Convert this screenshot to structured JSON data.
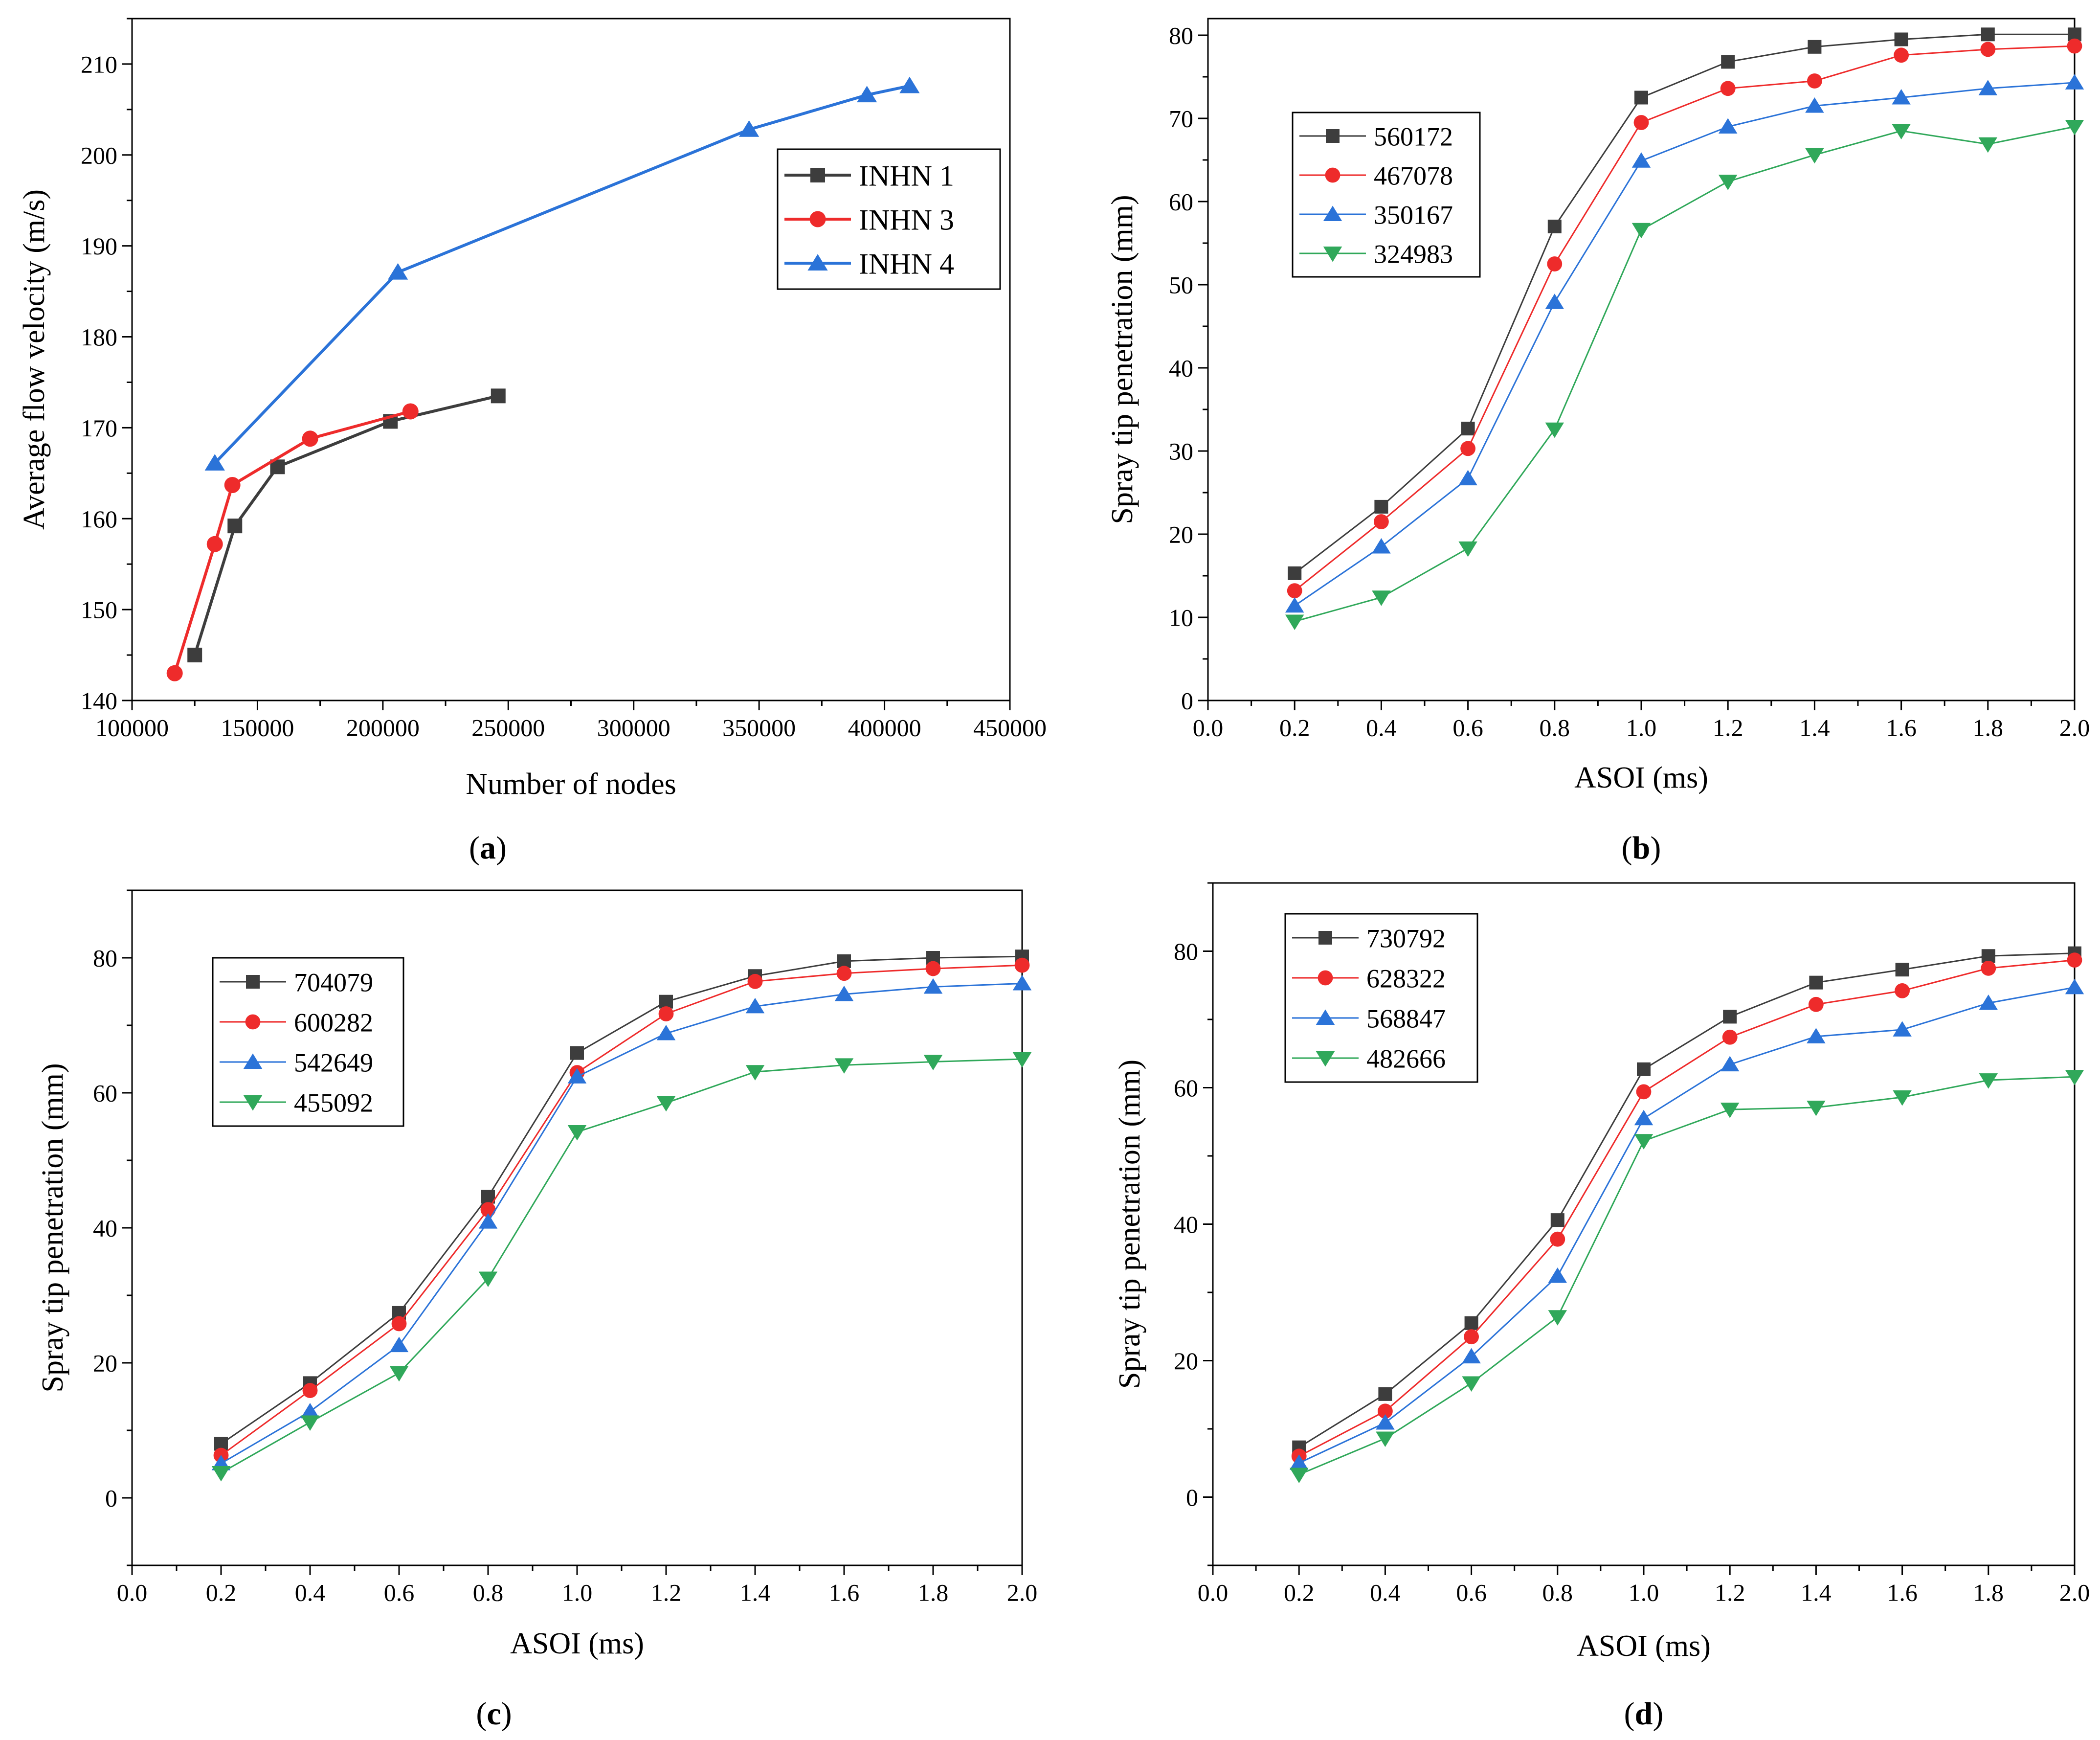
{
  "colors": {
    "black": "#3d3d3d",
    "red": "#ee2b2b",
    "blue": "#2b73d8",
    "green": "#30a85a",
    "axis": "#000000"
  },
  "panels": [
    {
      "id": "a",
      "caption": "a",
      "chart_data": {
        "type": "line",
        "title": "",
        "xlabel": "Number of nodes",
        "ylabel": "Average flow velocity (m/s)",
        "xlim": [
          100000,
          450000
        ],
        "ylim": [
          140,
          215
        ],
        "xticks": [
          100000,
          150000,
          200000,
          250000,
          300000,
          350000,
          400000,
          450000
        ],
        "xtick_labels": [
          "100000",
          "150000",
          "200000",
          "250000",
          "300000",
          "350000",
          "400000",
          "450000"
        ],
        "yticks": [
          140,
          150,
          160,
          170,
          180,
          190,
          200,
          210
        ],
        "ytick_labels": [
          "140",
          "150",
          "160",
          "170",
          "180",
          "190",
          "200",
          "210"
        ],
        "legend_position": "top-right",
        "series": [
          {
            "name": "INHN 1",
            "color": "black",
            "marker": "square",
            "x": [
              125000,
              141000,
              158000,
              203000,
              246000
            ],
            "y": [
              145.0,
              159.2,
              165.7,
              170.7,
              173.5
            ]
          },
          {
            "name": "INHN 3",
            "color": "red",
            "marker": "circle",
            "x": [
              117000,
              133000,
              140000,
              171000,
              211000
            ],
            "y": [
              143.0,
              157.2,
              163.7,
              168.8,
              171.8
            ]
          },
          {
            "name": "INHN 4",
            "color": "blue",
            "marker": "triangle-up",
            "x": [
              133000,
              206000,
              346000,
              393000,
              410000
            ],
            "y": [
              166.1,
              187.1,
              202.8,
              206.6,
              207.6
            ]
          }
        ]
      }
    },
    {
      "id": "b",
      "caption": "b",
      "chart_data": {
        "type": "line",
        "title": "",
        "xlabel": "ASOI (ms)",
        "ylabel": "Spray tip penetration (mm)",
        "xlim": [
          0.0,
          2.0
        ],
        "ylim": [
          0,
          82
        ],
        "xticks": [
          0.0,
          0.2,
          0.4,
          0.6,
          0.8,
          1.0,
          1.2,
          1.4,
          1.6,
          1.8,
          2.0
        ],
        "xtick_labels": [
          "0.0",
          "0.2",
          "0.4",
          "0.6",
          "0.8",
          "1.0",
          "1.2",
          "1.4",
          "1.6",
          "1.8",
          "2.0"
        ],
        "yticks": [
          0,
          10,
          20,
          30,
          40,
          50,
          60,
          70,
          80
        ],
        "ytick_labels": [
          "0",
          "10",
          "20",
          "30",
          "40",
          "50",
          "60",
          "70",
          "80"
        ],
        "legend_position": "top-left",
        "x": [
          0.2,
          0.4,
          0.6,
          0.8,
          1.0,
          1.2,
          1.4,
          1.6,
          1.8,
          2.0
        ],
        "series": [
          {
            "name": "560172",
            "color": "black",
            "marker": "square",
            "y": [
              15.3,
              23.3,
              32.7,
              57.0,
              72.5,
              76.8,
              78.6,
              79.5,
              80.1,
              80.1
            ]
          },
          {
            "name": "467078",
            "color": "red",
            "marker": "circle",
            "y": [
              13.2,
              21.5,
              30.3,
              52.5,
              69.5,
              73.6,
              74.5,
              77.6,
              78.3,
              78.7
            ]
          },
          {
            "name": "350167",
            "color": "blue",
            "marker": "triangle-up",
            "y": [
              11.4,
              18.5,
              26.7,
              47.9,
              64.9,
              69.0,
              71.5,
              72.5,
              73.6,
              74.3
            ]
          },
          {
            "name": "324983",
            "color": "green",
            "marker": "triangle-down",
            "y": [
              9.5,
              12.4,
              18.3,
              32.6,
              56.6,
              62.4,
              65.6,
              68.5,
              66.9,
              69.0
            ]
          }
        ]
      }
    },
    {
      "id": "c",
      "caption": "c",
      "chart_data": {
        "type": "line",
        "title": "",
        "xlabel": "ASOI (ms)",
        "ylabel": "Spray tip penetration (mm)",
        "xlim": [
          0.0,
          2.0
        ],
        "ylim": [
          -10,
          90
        ],
        "xticks": [
          0.0,
          0.2,
          0.4,
          0.6,
          0.8,
          1.0,
          1.2,
          1.4,
          1.6,
          1.8,
          2.0
        ],
        "xtick_labels": [
          "0.0",
          "0.2",
          "0.4",
          "0.6",
          "0.8",
          "1.0",
          "1.2",
          "1.4",
          "1.6",
          "1.8",
          "2.0"
        ],
        "yticks": [
          0,
          20,
          40,
          60,
          80
        ],
        "ytick_labels": [
          "0",
          "20",
          "40",
          "60",
          "80"
        ],
        "legend_position": "top-left",
        "x": [
          0.2,
          0.4,
          0.6,
          0.8,
          1.0,
          1.2,
          1.4,
          1.6,
          1.8,
          2.0
        ],
        "series": [
          {
            "name": "704079",
            "color": "black",
            "marker": "square",
            "y": [
              8.0,
              17.0,
              27.4,
              44.6,
              65.9,
              73.5,
              77.3,
              79.5,
              80.0,
              80.2
            ]
          },
          {
            "name": "600282",
            "color": "red",
            "marker": "circle",
            "y": [
              6.3,
              15.9,
              25.8,
              42.7,
              63.0,
              71.7,
              76.5,
              77.7,
              78.4,
              78.9
            ]
          },
          {
            "name": "542649",
            "color": "blue",
            "marker": "triangle-up",
            "y": [
              5.1,
              12.8,
              22.6,
              40.9,
              62.4,
              68.8,
              72.8,
              74.6,
              75.7,
              76.2
            ]
          },
          {
            "name": "455092",
            "color": "green",
            "marker": "triangle-down",
            "y": [
              3.7,
              11.2,
              18.5,
              32.5,
              54.2,
              58.5,
              63.1,
              64.1,
              64.6,
              65.0
            ]
          }
        ]
      }
    },
    {
      "id": "d",
      "caption": "d",
      "chart_data": {
        "type": "line",
        "title": "",
        "xlabel": "ASOI (ms)",
        "ylabel": "Spray tip penetration (mm)",
        "xlim": [
          0.0,
          2.0
        ],
        "ylim": [
          -10,
          90
        ],
        "xticks": [
          0.0,
          0.2,
          0.4,
          0.6,
          0.8,
          1.0,
          1.2,
          1.4,
          1.6,
          1.8,
          2.0
        ],
        "xtick_labels": [
          "0.0",
          "0.2",
          "0.4",
          "0.6",
          "0.8",
          "1.0",
          "1.2",
          "1.4",
          "1.6",
          "1.8",
          "2.0"
        ],
        "yticks": [
          0,
          20,
          40,
          60,
          80
        ],
        "ytick_labels": [
          "0",
          "20",
          "40",
          "60",
          "80"
        ],
        "legend_position": "top-left",
        "x": [
          0.2,
          0.4,
          0.6,
          0.8,
          1.0,
          1.2,
          1.4,
          1.6,
          1.8,
          2.0
        ],
        "series": [
          {
            "name": "730792",
            "color": "black",
            "marker": "square",
            "y": [
              7.3,
              15.1,
              25.5,
              40.6,
              62.7,
              70.4,
              75.4,
              77.3,
              79.3,
              79.7
            ]
          },
          {
            "name": "628322",
            "color": "red",
            "marker": "circle",
            "y": [
              6.0,
              12.6,
              23.5,
              37.8,
              59.4,
              67.4,
              72.2,
              74.2,
              77.5,
              78.7
            ]
          },
          {
            "name": "568847",
            "color": "blue",
            "marker": "triangle-up",
            "y": [
              5.0,
              10.9,
              20.6,
              32.4,
              55.5,
              63.4,
              67.5,
              68.5,
              72.4,
              74.7
            ]
          },
          {
            "name": "482666",
            "color": "green",
            "marker": "triangle-down",
            "y": [
              3.3,
              8.6,
              16.7,
              26.4,
              52.2,
              56.8,
              57.1,
              58.6,
              61.1,
              61.6
            ]
          }
        ]
      }
    }
  ]
}
